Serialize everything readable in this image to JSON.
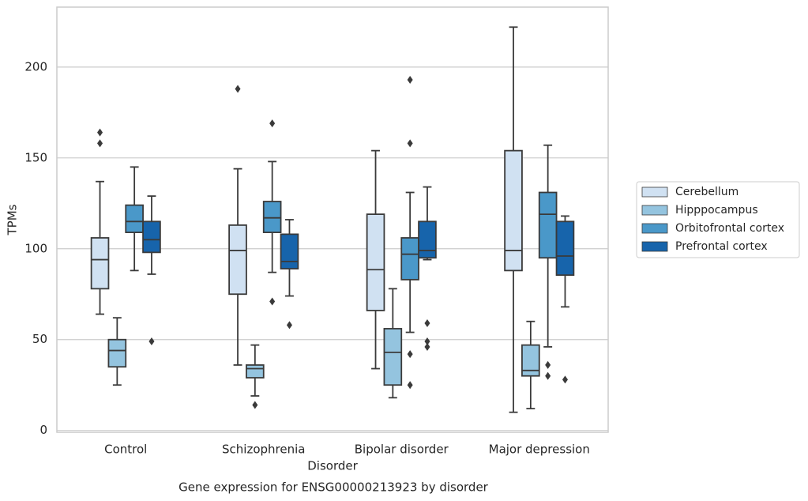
{
  "chart_data": {
    "type": "box",
    "title": "Gene expression for ENSG00000213923 by disorder",
    "xlabel": "Disorder",
    "ylabel": "TPMs",
    "categories": [
      "Control",
      "Schizophrenia",
      "Bipolar disorder",
      "Major depression"
    ],
    "ylim": [
      -1,
      233
    ],
    "yticks": [
      0,
      50,
      100,
      150,
      200
    ],
    "grid": true,
    "legend": "center right",
    "series": [
      {
        "name": "Cerebellum",
        "color": "#d0e1f2",
        "boxes": [
          {
            "low": 64,
            "q1": 78,
            "median": 94,
            "q3": 106,
            "high": 137,
            "outliers": [
              164,
              158
            ]
          },
          {
            "low": 36,
            "q1": 75,
            "median": 99,
            "q3": 113,
            "high": 144,
            "outliers": [
              188
            ]
          },
          {
            "low": 34,
            "q1": 66,
            "median": 88.5,
            "q3": 119,
            "high": 154,
            "outliers": []
          },
          {
            "low": 10,
            "q1": 88,
            "median": 99,
            "q3": 154,
            "high": 222,
            "outliers": []
          }
        ]
      },
      {
        "name": "Hipppocampus",
        "color": "#94c4df",
        "boxes": [
          {
            "low": 25,
            "q1": 35,
            "median": 44,
            "q3": 50,
            "high": 62,
            "outliers": []
          },
          {
            "low": 19,
            "q1": 29,
            "median": 34,
            "q3": 36,
            "high": 47,
            "outliers": [
              14
            ]
          },
          {
            "low": 18,
            "q1": 25,
            "median": 43,
            "q3": 56,
            "high": 78,
            "outliers": []
          },
          {
            "low": 12,
            "q1": 30,
            "median": 33,
            "q3": 47,
            "high": 60,
            "outliers": []
          }
        ]
      },
      {
        "name": "Orbitofrontal cortex",
        "color": "#4a98c9",
        "boxes": [
          {
            "low": 88,
            "q1": 109,
            "median": 115,
            "q3": 124,
            "high": 145,
            "outliers": []
          },
          {
            "low": 87,
            "q1": 109,
            "median": 117,
            "q3": 126,
            "high": 148,
            "outliers": [
              169,
              71
            ]
          },
          {
            "low": 54,
            "q1": 83,
            "median": 97,
            "q3": 106,
            "high": 131,
            "outliers": [
              193,
              158,
              42,
              25
            ]
          },
          {
            "low": 46,
            "q1": 95,
            "median": 119,
            "q3": 131,
            "high": 157,
            "outliers": [
              36,
              30
            ]
          }
        ]
      },
      {
        "name": "Prefrontal cortex",
        "color": "#1764ab",
        "boxes": [
          {
            "low": 86,
            "q1": 98,
            "median": 105,
            "q3": 115,
            "high": 129,
            "outliers": [
              49
            ]
          },
          {
            "low": 74,
            "q1": 89,
            "median": 93,
            "q3": 108,
            "high": 116,
            "outliers": [
              58
            ]
          },
          {
            "low": 94,
            "q1": 95,
            "median": 99,
            "q3": 115,
            "high": 134,
            "outliers": [
              59,
              49,
              46
            ]
          },
          {
            "low": 68,
            "q1": 85.5,
            "median": 96,
            "q3": 115,
            "high": 118,
            "outliers": [
              28
            ]
          }
        ]
      }
    ]
  }
}
